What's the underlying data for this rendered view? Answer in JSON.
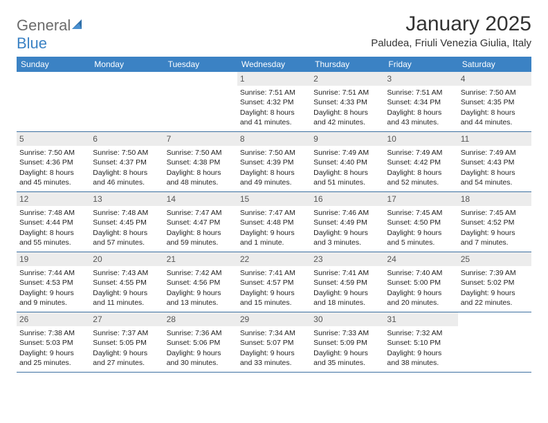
{
  "logo": {
    "word1": "General",
    "word2": "Blue"
  },
  "title": "January 2025",
  "location": "Paludea, Friuli Venezia Giulia, Italy",
  "colors": {
    "header_bg": "#3b82c4",
    "header_text": "#ffffff",
    "daynum_bg": "#ececec",
    "rule": "#3b6fa0"
  },
  "dow": [
    "Sunday",
    "Monday",
    "Tuesday",
    "Wednesday",
    "Thursday",
    "Friday",
    "Saturday"
  ],
  "weeks": [
    [
      null,
      null,
      null,
      {
        "n": "1",
        "sr": "7:51 AM",
        "ss": "4:32 PM",
        "dl": "8 hours and 41 minutes."
      },
      {
        "n": "2",
        "sr": "7:51 AM",
        "ss": "4:33 PM",
        "dl": "8 hours and 42 minutes."
      },
      {
        "n": "3",
        "sr": "7:51 AM",
        "ss": "4:34 PM",
        "dl": "8 hours and 43 minutes."
      },
      {
        "n": "4",
        "sr": "7:50 AM",
        "ss": "4:35 PM",
        "dl": "8 hours and 44 minutes."
      }
    ],
    [
      {
        "n": "5",
        "sr": "7:50 AM",
        "ss": "4:36 PM",
        "dl": "8 hours and 45 minutes."
      },
      {
        "n": "6",
        "sr": "7:50 AM",
        "ss": "4:37 PM",
        "dl": "8 hours and 46 minutes."
      },
      {
        "n": "7",
        "sr": "7:50 AM",
        "ss": "4:38 PM",
        "dl": "8 hours and 48 minutes."
      },
      {
        "n": "8",
        "sr": "7:50 AM",
        "ss": "4:39 PM",
        "dl": "8 hours and 49 minutes."
      },
      {
        "n": "9",
        "sr": "7:49 AM",
        "ss": "4:40 PM",
        "dl": "8 hours and 51 minutes."
      },
      {
        "n": "10",
        "sr": "7:49 AM",
        "ss": "4:42 PM",
        "dl": "8 hours and 52 minutes."
      },
      {
        "n": "11",
        "sr": "7:49 AM",
        "ss": "4:43 PM",
        "dl": "8 hours and 54 minutes."
      }
    ],
    [
      {
        "n": "12",
        "sr": "7:48 AM",
        "ss": "4:44 PM",
        "dl": "8 hours and 55 minutes."
      },
      {
        "n": "13",
        "sr": "7:48 AM",
        "ss": "4:45 PM",
        "dl": "8 hours and 57 minutes."
      },
      {
        "n": "14",
        "sr": "7:47 AM",
        "ss": "4:47 PM",
        "dl": "8 hours and 59 minutes."
      },
      {
        "n": "15",
        "sr": "7:47 AM",
        "ss": "4:48 PM",
        "dl": "9 hours and 1 minute."
      },
      {
        "n": "16",
        "sr": "7:46 AM",
        "ss": "4:49 PM",
        "dl": "9 hours and 3 minutes."
      },
      {
        "n": "17",
        "sr": "7:45 AM",
        "ss": "4:50 PM",
        "dl": "9 hours and 5 minutes."
      },
      {
        "n": "18",
        "sr": "7:45 AM",
        "ss": "4:52 PM",
        "dl": "9 hours and 7 minutes."
      }
    ],
    [
      {
        "n": "19",
        "sr": "7:44 AM",
        "ss": "4:53 PM",
        "dl": "9 hours and 9 minutes."
      },
      {
        "n": "20",
        "sr": "7:43 AM",
        "ss": "4:55 PM",
        "dl": "9 hours and 11 minutes."
      },
      {
        "n": "21",
        "sr": "7:42 AM",
        "ss": "4:56 PM",
        "dl": "9 hours and 13 minutes."
      },
      {
        "n": "22",
        "sr": "7:41 AM",
        "ss": "4:57 PM",
        "dl": "9 hours and 15 minutes."
      },
      {
        "n": "23",
        "sr": "7:41 AM",
        "ss": "4:59 PM",
        "dl": "9 hours and 18 minutes."
      },
      {
        "n": "24",
        "sr": "7:40 AM",
        "ss": "5:00 PM",
        "dl": "9 hours and 20 minutes."
      },
      {
        "n": "25",
        "sr": "7:39 AM",
        "ss": "5:02 PM",
        "dl": "9 hours and 22 minutes."
      }
    ],
    [
      {
        "n": "26",
        "sr": "7:38 AM",
        "ss": "5:03 PM",
        "dl": "9 hours and 25 minutes."
      },
      {
        "n": "27",
        "sr": "7:37 AM",
        "ss": "5:05 PM",
        "dl": "9 hours and 27 minutes."
      },
      {
        "n": "28",
        "sr": "7:36 AM",
        "ss": "5:06 PM",
        "dl": "9 hours and 30 minutes."
      },
      {
        "n": "29",
        "sr": "7:34 AM",
        "ss": "5:07 PM",
        "dl": "9 hours and 33 minutes."
      },
      {
        "n": "30",
        "sr": "7:33 AM",
        "ss": "5:09 PM",
        "dl": "9 hours and 35 minutes."
      },
      {
        "n": "31",
        "sr": "7:32 AM",
        "ss": "5:10 PM",
        "dl": "9 hours and 38 minutes."
      },
      null
    ]
  ],
  "labels": {
    "sunrise": "Sunrise:",
    "sunset": "Sunset:",
    "daylight": "Daylight:"
  }
}
